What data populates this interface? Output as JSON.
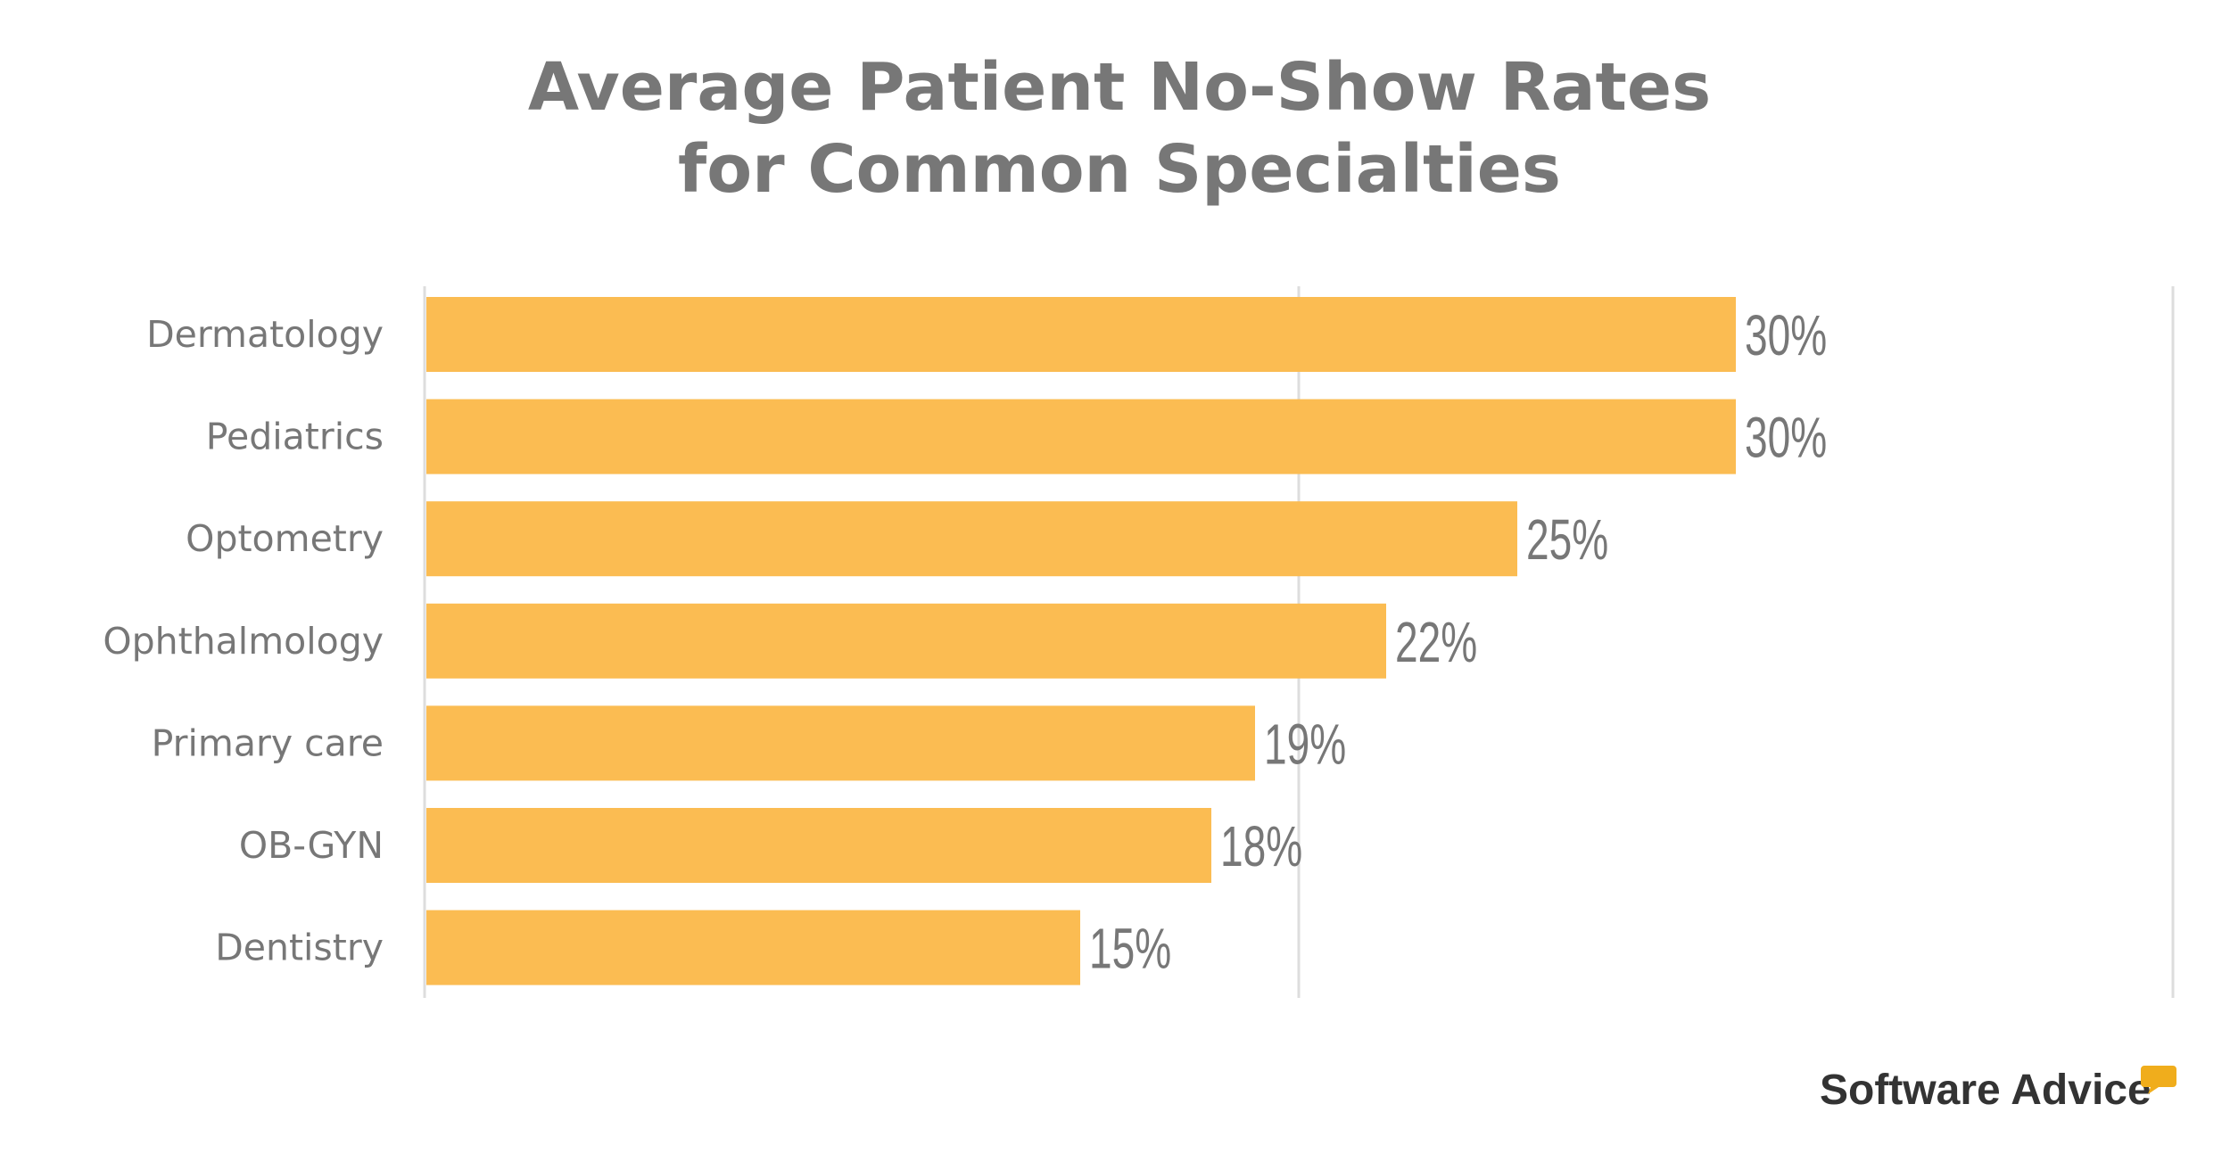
{
  "chart_data": {
    "type": "bar",
    "orientation": "horizontal",
    "title": "Average Patient No-Show Rates for Common Specialties",
    "title_lines": [
      "Average Patient No-Show Rates",
      "for Common Specialties"
    ],
    "categories": [
      "Dermatology",
      "Pediatrics",
      "Optometry",
      "Ophthalmology",
      "Primary care",
      "OB-GYN",
      "Dentistry"
    ],
    "values": [
      30,
      30,
      25,
      22,
      19,
      18,
      15
    ],
    "data_labels": [
      "30%",
      "30%",
      "25%",
      "22%",
      "19%",
      "18%",
      "15%"
    ],
    "unit": "%",
    "xlim": [
      0,
      40
    ],
    "gridlines_at": [
      0,
      20,
      40
    ],
    "grid": true,
    "tick_labels_shown": false,
    "bar_color": "#FBBC52",
    "text_color": "#777777"
  },
  "brand": {
    "name": "Software Advice",
    "mark": "®",
    "accent": "#F0AD1C"
  }
}
